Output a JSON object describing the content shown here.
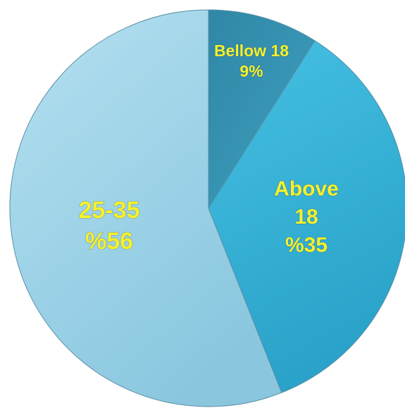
{
  "chart_data": {
    "type": "pie",
    "title": "",
    "slices": [
      {
        "label_lines": [
          "Bellow 18",
          "9%"
        ],
        "value": 9,
        "color": "#3fa0bf"
      },
      {
        "label_lines": [
          "Above",
          "18",
          "%35"
        ],
        "value": 35,
        "color": "#3db4d8"
      },
      {
        "label_lines": [
          "25-35",
          "%56"
        ],
        "value": 56,
        "color": "#9fd3e8"
      }
    ],
    "label_color": "#f5f12b",
    "legend": "none"
  }
}
